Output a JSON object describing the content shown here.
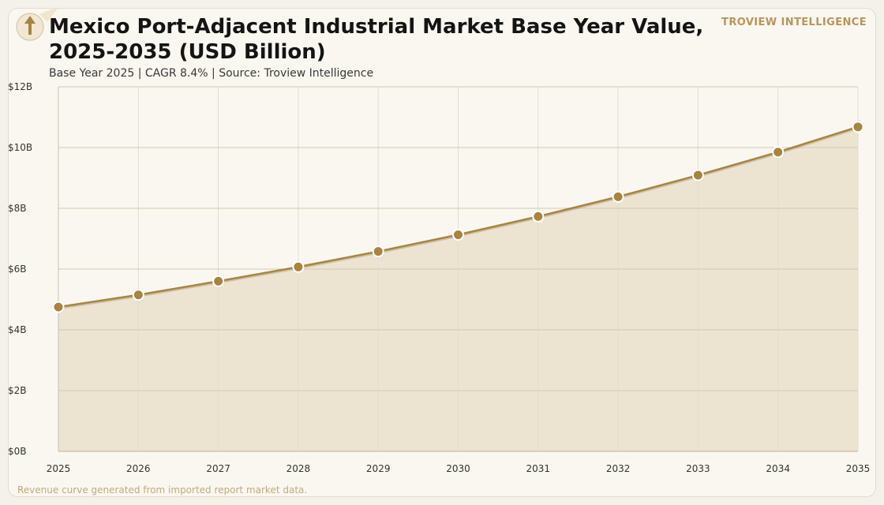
{
  "header": {
    "title": "Mexico Port-Adjacent Industrial Market Base Year Value, 2025-2035 (USD Billion)",
    "subtitle": "Base Year 2025 | CAGR 8.4% | Source: Troview Intelligence",
    "brand": "TROVIEW INTELLIGENCE"
  },
  "footer": {
    "note": "Revenue curve generated from imported report market data."
  },
  "logo": {
    "icon": "up-arrow-badge-icon"
  },
  "colors": {
    "line": "#a8843f",
    "area": "#ede3d1",
    "marker": "#a8843f",
    "grid_h": "#cfc8b9",
    "grid_v": "#e3ddd0",
    "brand": "#b8965b"
  },
  "chart_data": {
    "type": "area",
    "x": [
      "2025",
      "2026",
      "2027",
      "2028",
      "2029",
      "2030",
      "2031",
      "2032",
      "2033",
      "2034",
      "2035"
    ],
    "series": [
      {
        "values": [
          4.75,
          5.15,
          5.6,
          6.07,
          6.58,
          7.13,
          7.73,
          8.38,
          9.09,
          9.85,
          10.68
        ]
      }
    ],
    "ylim": [
      0,
      12
    ],
    "yticks": [
      "$0B",
      "$2B",
      "$4B",
      "$6B",
      "$8B",
      "$10B",
      "$12B"
    ],
    "ytick_values": [
      0,
      2,
      4,
      6,
      8,
      10,
      12
    ],
    "grid": true,
    "markers": true,
    "xlabel": "",
    "ylabel": ""
  }
}
